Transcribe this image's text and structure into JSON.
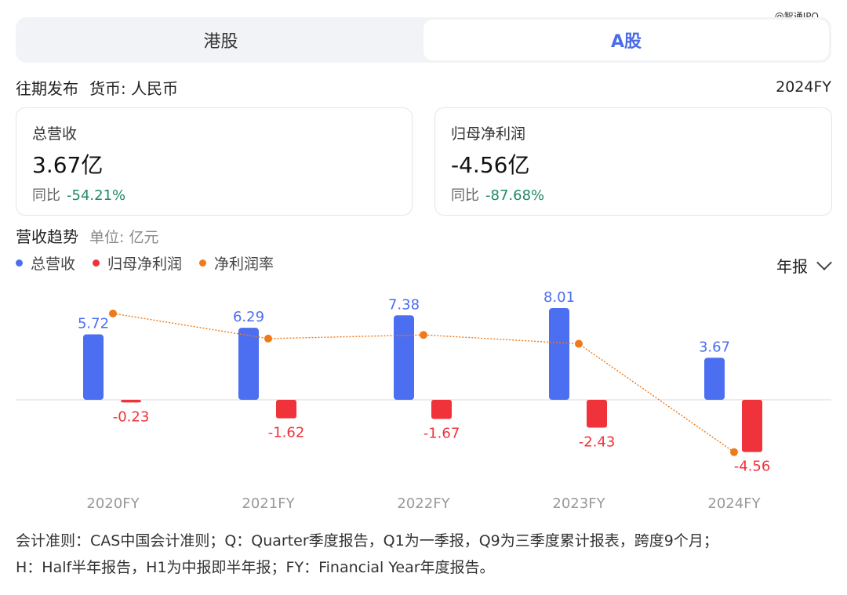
{
  "watermark": "@智通IPO",
  "tabs": [
    {
      "label": "港股",
      "active": false
    },
    {
      "label": "A股",
      "active": true
    }
  ],
  "meta": {
    "title": "往期发布",
    "currency": "货币: 人民币",
    "period": "2024FY"
  },
  "cards": [
    {
      "label": "总营收",
      "value": "3.67亿",
      "yoy_label": "同比",
      "yoy": "-54.21%"
    },
    {
      "label": "归母净利润",
      "value": "-4.56亿",
      "yoy_label": "同比",
      "yoy": "-87.68%"
    }
  ],
  "trend": {
    "title": "营收趋势",
    "unit": "单位: 亿元",
    "period_select": "年报"
  },
  "colors": {
    "revenue": "#4c6ef0",
    "profit": "#f0323a",
    "margin": "#f07a1a",
    "accent": "#4a6ce8",
    "positive_green": "#1e8a64"
  },
  "chart_data": {
    "type": "bar",
    "categories": [
      "2020FY",
      "2021FY",
      "2022FY",
      "2023FY",
      "2024FY"
    ],
    "series": [
      {
        "name": "总营收",
        "values": [
          5.72,
          6.29,
          7.38,
          8.01,
          3.67
        ]
      },
      {
        "name": "归母净利润",
        "values": [
          -0.23,
          -1.62,
          -1.67,
          -2.43,
          -4.56
        ]
      },
      {
        "name": "净利润率",
        "type": "line",
        "values": [
          -4.0,
          -25.8,
          -22.6,
          -30.3,
          -124.3
        ]
      }
    ],
    "legend_position": "top-left",
    "grid": false
  },
  "footnote": [
    "会计准则：CAS中国会计准则；Q：Quarter季度报告，Q1为一季报，Q9为三季度累计报表，跨度9个月；",
    "H：Half半年报告，H1为中报即半年报；FY：Financial Year年度报告。"
  ]
}
